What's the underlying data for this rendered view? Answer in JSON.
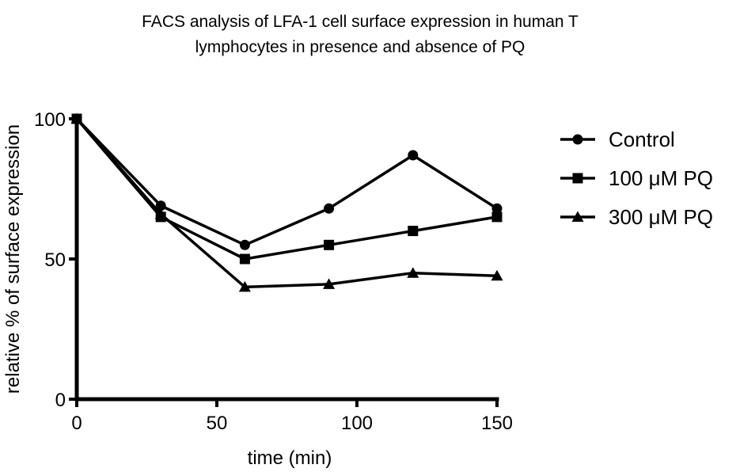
{
  "chart_data": {
    "type": "line",
    "title_lines": [
      "FACS analysis of LFA-1 cell surface expression in human T",
      "lymphocytes in presence and absence of PQ"
    ],
    "xlabel": "time (min)",
    "ylabel": "relative % of surface expression",
    "xlim": [
      0,
      150
    ],
    "ylim": [
      0,
      100
    ],
    "xticks": [
      0,
      50,
      100,
      150
    ],
    "yticks": [
      0,
      50,
      100
    ],
    "grid": false,
    "legend_position": "right",
    "series": [
      {
        "name": "Control",
        "marker": "circle",
        "color": "#000000",
        "x": [
          0,
          30,
          60,
          90,
          120,
          150
        ],
        "y": [
          100,
          69,
          55,
          68,
          87,
          68
        ]
      },
      {
        "name": "100 μM PQ",
        "marker": "square",
        "color": "#000000",
        "x": [
          0,
          30,
          60,
          90,
          120,
          150
        ],
        "y": [
          100,
          65,
          50,
          55,
          60,
          65
        ]
      },
      {
        "name": "300 μM PQ",
        "marker": "triangle",
        "color": "#000000",
        "x": [
          0,
          30,
          60,
          90,
          120,
          150
        ],
        "y": [
          100,
          66,
          40,
          41,
          45,
          44
        ]
      }
    ]
  }
}
